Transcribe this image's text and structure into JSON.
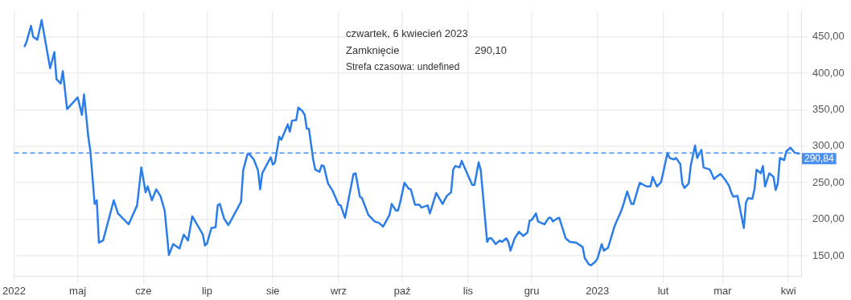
{
  "chart_data": {
    "type": "line",
    "x": [
      "2022-04-06",
      "2022-04-07",
      "2022-04-09",
      "2022-04-10",
      "2022-04-12",
      "2022-04-14",
      "2022-04-18",
      "2022-04-20",
      "2022-04-21",
      "2022-04-23",
      "2022-04-24",
      "2022-04-26",
      "2022-05-01",
      "2022-05-03",
      "2022-05-04",
      "2022-05-06",
      "2022-05-07",
      "2022-05-09",
      "2022-05-10",
      "2022-05-11",
      "2022-05-13",
      "2022-05-18",
      "2022-05-20",
      "2022-05-25",
      "2022-05-29",
      "2022-05-31",
      "2022-06-02",
      "2022-06-03",
      "2022-06-05",
      "2022-06-07",
      "2022-06-09",
      "2022-06-11",
      "2022-06-13",
      "2022-06-15",
      "2022-06-18",
      "2022-06-20",
      "2022-06-22",
      "2022-06-24",
      "2022-06-29",
      "2022-06-30",
      "2022-07-01",
      "2022-07-03",
      "2022-07-05",
      "2022-07-06",
      "2022-07-07",
      "2022-07-09",
      "2022-07-11",
      "2022-07-12",
      "2022-07-17",
      "2022-07-18",
      "2022-07-20",
      "2022-07-21",
      "2022-07-23",
      "2022-07-25",
      "2022-07-26",
      "2022-07-27",
      "2022-07-31",
      "2022-08-01",
      "2022-08-02",
      "2022-08-04",
      "2022-08-05",
      "2022-08-08",
      "2022-08-09",
      "2022-08-10",
      "2022-08-12",
      "2022-08-13",
      "2022-08-15",
      "2022-08-16",
      "2022-08-17",
      "2022-08-18",
      "2022-08-20",
      "2022-08-21",
      "2022-08-23",
      "2022-08-24",
      "2022-08-25",
      "2022-08-27",
      "2022-08-29",
      "2022-09-01",
      "2022-09-02",
      "2022-09-04",
      "2022-09-08",
      "2022-09-09",
      "2022-09-11",
      "2022-09-12",
      "2022-09-15",
      "2022-09-18",
      "2022-09-20",
      "2022-09-22",
      "2022-09-25",
      "2022-09-26",
      "2022-09-28",
      "2022-09-29",
      "2022-09-30",
      "2022-10-02",
      "2022-10-04",
      "2022-10-05",
      "2022-10-07",
      "2022-10-09",
      "2022-10-10",
      "2022-10-13",
      "2022-10-14",
      "2022-10-17",
      "2022-10-20",
      "2022-10-22",
      "2022-10-24",
      "2022-10-25",
      "2022-10-26",
      "2022-10-28",
      "2022-10-29",
      "2022-11-01",
      "2022-11-03",
      "2022-11-04",
      "2022-11-06",
      "2022-11-07",
      "2022-11-10",
      "2022-11-11",
      "2022-11-12",
      "2022-11-14",
      "2022-11-16",
      "2022-11-17",
      "2022-11-19",
      "2022-11-20",
      "2022-11-21",
      "2022-11-23",
      "2022-11-25",
      "2022-11-27",
      "2022-11-29",
      "2022-11-30",
      "2022-12-01",
      "2022-12-03",
      "2022-12-04",
      "2022-12-07",
      "2022-12-09",
      "2022-12-10",
      "2022-12-11",
      "2022-12-13",
      "2022-12-14",
      "2022-12-17",
      "2022-12-19",
      "2022-12-22",
      "2022-12-25",
      "2022-12-26",
      "2022-12-28",
      "2022-12-29",
      "2022-12-31",
      "2023-01-01",
      "2023-01-03",
      "2023-01-04",
      "2023-01-06",
      "2023-01-09",
      "2023-01-10",
      "2023-01-12",
      "2023-01-13",
      "2023-01-15",
      "2023-01-17",
      "2023-01-18",
      "2023-01-20",
      "2023-01-21",
      "2023-01-24",
      "2023-01-26",
      "2023-01-27",
      "2023-01-29",
      "2023-01-31",
      "2023-02-01",
      "2023-02-03",
      "2023-02-04",
      "2023-02-06",
      "2023-02-07",
      "2023-02-09",
      "2023-02-10",
      "2023-02-11",
      "2023-02-13",
      "2023-02-14",
      "2023-02-16",
      "2023-02-17",
      "2023-02-19",
      "2023-02-20",
      "2023-02-23",
      "2023-02-25",
      "2023-02-26",
      "2023-02-28",
      "2023-03-02",
      "2023-03-04",
      "2023-03-05",
      "2023-03-06",
      "2023-03-08",
      "2023-03-11",
      "2023-03-12",
      "2023-03-13",
      "2023-03-15",
      "2023-03-16",
      "2023-03-17",
      "2023-03-19",
      "2023-03-20",
      "2023-03-21",
      "2023-03-23",
      "2023-03-25",
      "2023-03-26",
      "2023-03-27",
      "2023-03-28",
      "2023-03-30",
      "2023-03-31",
      "2023-04-02",
      "2023-04-04",
      "2023-04-06"
    ],
    "series": [
      {
        "color": "#2b7de9",
        "values": [
          437,
          444,
          465,
          450,
          446,
          473,
          407,
          429,
          392,
          386,
          403,
          351,
          367,
          343,
          371,
          313,
          293,
          221,
          226,
          168,
          171,
          226,
          208,
          193,
          219,
          271,
          237,
          245,
          226,
          241,
          232,
          212,
          151,
          166,
          160,
          179,
          171,
          204,
          179,
          164,
          167,
          188,
          189,
          219,
          221,
          201,
          192,
          197,
          224,
          267,
          289,
          289,
          282,
          267,
          241,
          263,
          285,
          275,
          278,
          313,
          309,
          330,
          320,
          335,
          336,
          353,
          348,
          343,
          324,
          324,
          282,
          268,
          265,
          274,
          273,
          249,
          240,
          220,
          219,
          202,
          262,
          263,
          231,
          229,
          206,
          197,
          195,
          190,
          206,
          221,
          212,
          212,
          223,
          250,
          242,
          241,
          220,
          220,
          216,
          219,
          208,
          236,
          221,
          232,
          237,
          268,
          273,
          271,
          280,
          260,
          247,
          247,
          278,
          267,
          169,
          174,
          174,
          166,
          171,
          169,
          174,
          169,
          157,
          174,
          183,
          177,
          182,
          198,
          199,
          208,
          197,
          193,
          202,
          202,
          197,
          201,
          202,
          174,
          169,
          168,
          162,
          147,
          138,
          137,
          142,
          146,
          166,
          157,
          161,
          190,
          197,
          210,
          218,
          238,
          221,
          221,
          241,
          250,
          245,
          245,
          258,
          245,
          251,
          264,
          291,
          284,
          282,
          284,
          276,
          249,
          243,
          249,
          274,
          301,
          284,
          295,
          271,
          268,
          255,
          258,
          262,
          255,
          246,
          237,
          231,
          232,
          188,
          223,
          229,
          228,
          241,
          268,
          263,
          273,
          245,
          263,
          258,
          240,
          249,
          284,
          281,
          293,
          298,
          291,
          290
        ]
      }
    ],
    "xlim": [
      "2022-04-01",
      "2023-04-07"
    ],
    "xticks": [
      {
        "value": "2022-04-01",
        "label": "2022"
      },
      {
        "value": "2022-05-01",
        "label": "maj"
      },
      {
        "value": "2022-06-01",
        "label": "cze"
      },
      {
        "value": "2022-07-01",
        "label": "lip"
      },
      {
        "value": "2022-08-01",
        "label": "sie"
      },
      {
        "value": "2022-09-01",
        "label": "wrz"
      },
      {
        "value": "2022-10-01",
        "label": "paź"
      },
      {
        "value": "2022-11-01",
        "label": "lis"
      },
      {
        "value": "2022-12-01",
        "label": "gru"
      },
      {
        "value": "2023-01-01",
        "label": "2023"
      },
      {
        "value": "2023-02-01",
        "label": "lut"
      },
      {
        "value": "2023-03-01",
        "label": "mar"
      },
      {
        "value": "2023-04-01",
        "label": "kwi"
      }
    ],
    "ylim": [
      122,
      485
    ],
    "yticks": [
      {
        "value": 150,
        "label": "150,00"
      },
      {
        "value": 200,
        "label": "200,00"
      },
      {
        "value": 250,
        "label": "250,00"
      },
      {
        "value": 300,
        "label": "300,00"
      },
      {
        "value": 350,
        "label": "350,00"
      },
      {
        "value": 400,
        "label": "400,00"
      },
      {
        "value": 450,
        "label": "450,00"
      }
    ],
    "ref_lines": [
      {
        "axis": "y",
        "value": 290.84,
        "label": "290,84",
        "color": "#4a90f0",
        "line_style": "dashed"
      }
    ],
    "annotations": [
      "czwartek, 6 kwiecień 2023",
      "Zamknięcie",
      "290,10",
      "Strefa czasowa: undefined"
    ],
    "grid": true,
    "marker": "none",
    "line_style": "solid"
  }
}
